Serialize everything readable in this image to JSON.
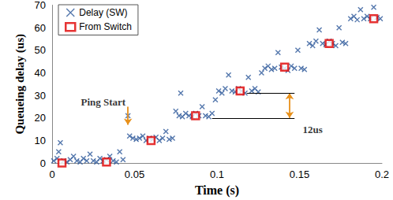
{
  "chart_data": {
    "type": "scatter",
    "x_label": "Time (s)",
    "y_label": "Queueing delay (us)",
    "xlim": [
      0,
      0.2
    ],
    "xticks": [
      0,
      0.05,
      0.1,
      0.15,
      0.2
    ],
    "ylim": [
      0,
      70
    ],
    "yticks": [
      0,
      10,
      20,
      30,
      40,
      50,
      60,
      70
    ],
    "grid": false,
    "legend": "upper left",
    "series": [
      {
        "name": "Delay (SW)",
        "color": "#2a5699",
        "marker": "x",
        "x": [
          0.001,
          0.003,
          0.004,
          0.005,
          0.007,
          0.009,
          0.011,
          0.013,
          0.015,
          0.017,
          0.019,
          0.021,
          0.023,
          0.025,
          0.027,
          0.029,
          0.031,
          0.033,
          0.035,
          0.037,
          0.039,
          0.041,
          0.043,
          0.046,
          0.047,
          0.049,
          0.051,
          0.053,
          0.055,
          0.057,
          0.059,
          0.061,
          0.063,
          0.065,
          0.067,
          0.069,
          0.071,
          0.073,
          0.075,
          0.077,
          0.078,
          0.079,
          0.081,
          0.083,
          0.085,
          0.087,
          0.089,
          0.091,
          0.093,
          0.095,
          0.097,
          0.099,
          0.101,
          0.103,
          0.105,
          0.107,
          0.109,
          0.111,
          0.113,
          0.115,
          0.117,
          0.119,
          0.121,
          0.123,
          0.125,
          0.127,
          0.129,
          0.131,
          0.133,
          0.135,
          0.137,
          0.139,
          0.141,
          0.143,
          0.145,
          0.147,
          0.149,
          0.151,
          0.153,
          0.156,
          0.158,
          0.16,
          0.162,
          0.164,
          0.166,
          0.168,
          0.17,
          0.172,
          0.174,
          0.176,
          0.178,
          0.181,
          0.183,
          0.185,
          0.187,
          0.189,
          0.191,
          0.193,
          0.195,
          0.197,
          0.199
        ],
        "values": [
          1,
          2,
          5,
          9,
          1,
          0.5,
          1.5,
          3,
          1,
          0.5,
          2,
          1,
          4,
          1,
          0.5,
          2,
          1,
          1.5,
          3,
          1,
          0.5,
          5,
          1.5,
          21,
          12,
          11,
          10.5,
          11,
          12,
          10,
          11,
          10.5,
          11.5,
          10,
          11,
          14,
          10.5,
          11,
          23,
          21,
          31,
          20.5,
          22,
          21,
          20.5,
          22,
          21,
          25,
          21,
          20.5,
          22,
          28,
          32,
          31,
          33,
          39,
          32,
          31.5,
          33,
          32,
          31,
          38,
          32,
          33,
          31.5,
          40,
          42,
          43,
          41.5,
          42,
          49,
          42.5,
          42,
          41,
          43,
          42,
          50,
          42,
          41.5,
          53,
          52,
          54,
          59,
          53,
          52.5,
          54,
          53,
          52,
          60,
          53.5,
          53,
          64,
          65,
          63.5,
          68,
          64,
          65,
          64,
          69,
          64.5,
          64
        ]
      },
      {
        "name": "From Switch",
        "color": "#e00000",
        "marker": "square",
        "x": [
          0.006,
          0.033,
          0.06,
          0.087,
          0.114,
          0.141,
          0.168,
          0.195
        ],
        "values": [
          0,
          0.5,
          10,
          21,
          32,
          42.5,
          53,
          64
        ]
      }
    ],
    "annotations": [
      {
        "text": "Ping Start",
        "x": 0.031,
        "y": 27,
        "color": "#e8901a",
        "arrows": [
          [
            0.046,
            25,
            0.046,
            17
          ]
        ],
        "lines": []
      },
      {
        "text": "12us",
        "x": 0.158,
        "y": 15,
        "color": "#e8901a",
        "arrows": [
          [
            0.144,
            25.5,
            0.144,
            20
          ],
          [
            0.144,
            25.5,
            0.144,
            31
          ]
        ],
        "lines": [
          [
            0.097,
            20,
            0.147,
            20
          ],
          [
            0.118,
            31,
            0.147,
            31
          ]
        ]
      }
    ]
  }
}
